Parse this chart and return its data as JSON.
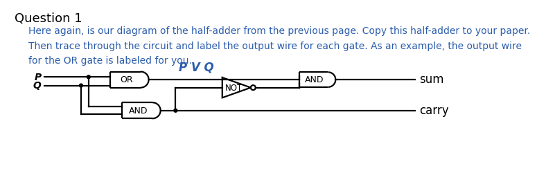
{
  "title": "Question 1",
  "title_color": "#000000",
  "title_fontsize": 13,
  "body_text": "Here again, is our diagram of the half-adder from the previous page. Copy this half-adder to your paper.\nThen trace through the circuit and label the output wire for each gate. As an example, the output wire\nfor the OR gate is labeled for you.",
  "body_color": "#2B5DAD",
  "body_fontsize": 10,
  "background_color": "#ffffff",
  "pvq_label": "P V Q",
  "pvq_color": "#2B5DAD",
  "sum_label": "sum",
  "carry_label": "carry",
  "P_label": "P",
  "Q_label": "Q",
  "OR_label": "OR",
  "AND1_label": "AND",
  "AND2_label": "AND",
  "NOT_label": "NOT",
  "line_color": "#000000"
}
